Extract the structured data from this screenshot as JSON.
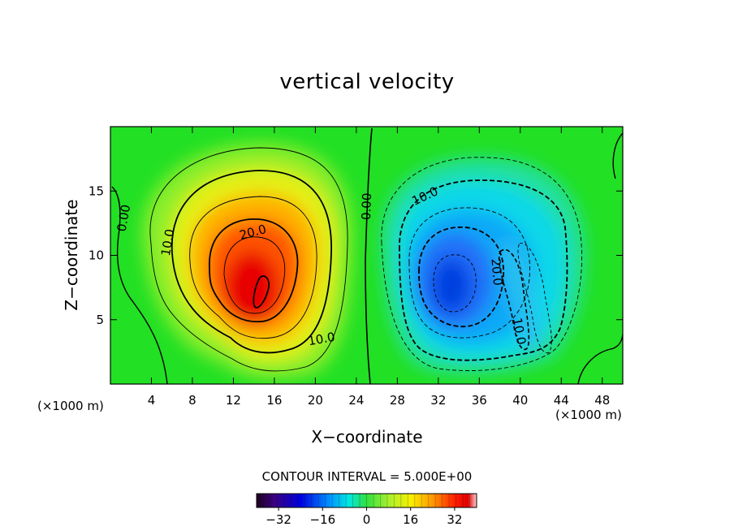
{
  "chart_data": {
    "type": "heatmap",
    "title": "vertical velocity",
    "xlabel": "X−coordinate",
    "ylabel": "Z−coordinate",
    "x_unit_left": "(×1000 m)",
    "x_unit_right": "(×1000 m)",
    "xlim": [
      0,
      50
    ],
    "ylim": [
      0,
      20
    ],
    "x_ticks": [
      4,
      8,
      12,
      16,
      20,
      24,
      28,
      32,
      36,
      40,
      44,
      48
    ],
    "y_ticks": [
      5,
      10,
      15
    ],
    "contour_interval_text": "CONTOUR INTERVAL = 5.000E+00",
    "contour_interval": 5,
    "colorbar": {
      "min": -40,
      "max": 40,
      "ticks": [
        -32,
        -16,
        0,
        16,
        32
      ],
      "tick_labels": [
        "−32",
        "−16",
        "0",
        "16",
        "32"
      ]
    },
    "features": [
      {
        "name": "updraft",
        "center": [
          15,
          7.5
        ],
        "peak_value": 38
      },
      {
        "name": "downdraft",
        "center": [
          33,
          8
        ],
        "peak_value": -25
      }
    ],
    "contour_labels": [
      {
        "text": "0.00",
        "x": 1.3,
        "z": 12.9,
        "rotate": -80
      },
      {
        "text": "10.0",
        "x": 5.6,
        "z": 11.0,
        "rotate": -80
      },
      {
        "text": "20.0",
        "x": 13.9,
        "z": 11.8,
        "rotate": -15
      },
      {
        "text": "10.0",
        "x": 20.6,
        "z": 3.5,
        "rotate": -10
      },
      {
        "text": "0.00",
        "x": 25.0,
        "z": 13.8,
        "rotate": -88
      },
      {
        "text": "10.0",
        "x": 30.7,
        "z": 14.6,
        "rotate": -25
      },
      {
        "text": "20.0",
        "x": 37.7,
        "z": 8.7,
        "rotate": 85
      },
      {
        "text": "10.0",
        "x": 39.9,
        "z": 4.1,
        "rotate": 80
      }
    ]
  }
}
